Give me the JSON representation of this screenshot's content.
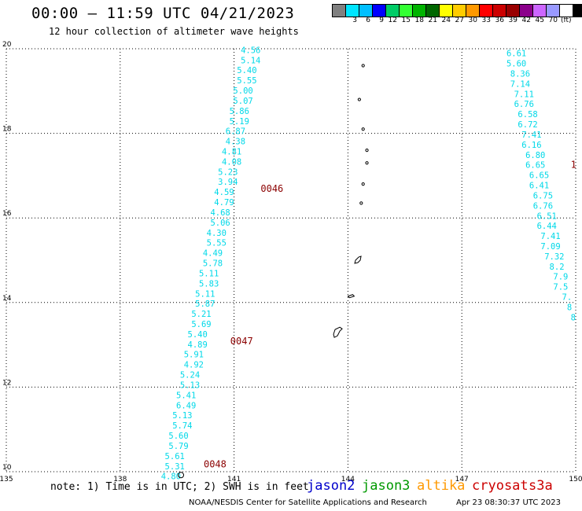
{
  "header": {
    "title": "00:00 – 11:59 UTC 04/21/2023",
    "subtitle": "12 hour collection of altimeter wave heights"
  },
  "legend": {
    "swatches": [
      "#808080",
      "#00e5ff",
      "#00bfff",
      "#0000ff",
      "#00cc66",
      "#33ff33",
      "#00b300",
      "#006600",
      "#ffff00",
      "#ffcc00",
      "#ff9900",
      "#ff0000",
      "#cc0000",
      "#990000",
      "#8b008b",
      "#cc66ff",
      "#9999ff",
      "#ffffff",
      "#000000"
    ],
    "labels": [
      "3",
      "6",
      "9",
      "12",
      "15",
      "18",
      "21",
      "24",
      "27",
      "30",
      "33",
      "36",
      "39",
      "42",
      "45",
      "70"
    ],
    "unit": "(ft)"
  },
  "footer": {
    "note": "note: 1) Time is in UTC; 2) SWH is in feet",
    "satellites": [
      {
        "name": "jason2",
        "color": "#0000cc"
      },
      {
        "name": "jason3",
        "color": "#009900"
      },
      {
        "name": "altika",
        "color": "#ff9900"
      },
      {
        "name": "cryosat",
        "color": "#cc0000"
      },
      {
        "name": "s3a",
        "color": "#cc0000"
      }
    ],
    "credit": "NOAA/NESDIS Center for Satellite Applications and Research",
    "timestamp": "Apr 23 08:30:37 UTC 2023"
  },
  "chart_data": {
    "type": "scatter",
    "xlim": [
      135,
      150
    ],
    "ylim": [
      10,
      20
    ],
    "xticks": [
      135,
      138,
      141,
      144,
      147,
      150
    ],
    "yticks": [
      10,
      12,
      14,
      16,
      18,
      20
    ],
    "grid": true,
    "value_color": "#00d8e8",
    "pass_label_color": "#8b0000",
    "passes": [
      {
        "label": "0046",
        "lon": 141.7,
        "lat": 16.62
      },
      {
        "label": "0047",
        "lon": 140.9,
        "lat": 13.01
      },
      {
        "label": "0048",
        "lon": 140.2,
        "lat": 10.1
      }
    ],
    "track_a": {
      "points": [
        {
          "lon": 141.7,
          "lat": 19.9,
          "v": "4.56"
        },
        {
          "lon": 141.7,
          "lat": 19.66,
          "v": "5.14"
        },
        {
          "lon": 141.6,
          "lat": 19.42,
          "v": "5.40"
        },
        {
          "lon": 141.6,
          "lat": 19.18,
          "v": "5.55"
        },
        {
          "lon": 141.5,
          "lat": 18.94,
          "v": "5.00"
        },
        {
          "lon": 141.5,
          "lat": 18.7,
          "v": "5.07"
        },
        {
          "lon": 141.4,
          "lat": 18.46,
          "v": "5.86"
        },
        {
          "lon": 141.4,
          "lat": 18.22,
          "v": "5.19"
        },
        {
          "lon": 141.3,
          "lat": 17.98,
          "v": "6.87"
        },
        {
          "lon": 141.3,
          "lat": 17.74,
          "v": "4.38"
        },
        {
          "lon": 141.2,
          "lat": 17.5,
          "v": "4.81"
        },
        {
          "lon": 141.2,
          "lat": 17.26,
          "v": "4.08"
        },
        {
          "lon": 141.1,
          "lat": 17.02,
          "v": "5.23"
        },
        {
          "lon": 141.1,
          "lat": 16.78,
          "v": "3.94"
        },
        {
          "lon": 141.0,
          "lat": 16.54,
          "v": "4.59"
        },
        {
          "lon": 141.0,
          "lat": 16.3,
          "v": "4.79"
        },
        {
          "lon": 140.9,
          "lat": 16.06,
          "v": "4.68"
        },
        {
          "lon": 140.9,
          "lat": 15.82,
          "v": "5.06"
        },
        {
          "lon": 140.8,
          "lat": 15.58,
          "v": "4.30"
        },
        {
          "lon": 140.8,
          "lat": 15.34,
          "v": "5.55"
        },
        {
          "lon": 140.7,
          "lat": 15.1,
          "v": "4.49"
        },
        {
          "lon": 140.7,
          "lat": 14.86,
          "v": "5.78"
        },
        {
          "lon": 140.6,
          "lat": 14.62,
          "v": "5.11"
        },
        {
          "lon": 140.6,
          "lat": 14.38,
          "v": "5.83"
        },
        {
          "lon": 140.5,
          "lat": 14.14,
          "v": "5.11"
        },
        {
          "lon": 140.5,
          "lat": 13.9,
          "v": "5.87"
        },
        {
          "lon": 140.4,
          "lat": 13.66,
          "v": "5.21"
        },
        {
          "lon": 140.4,
          "lat": 13.42,
          "v": "5.69"
        },
        {
          "lon": 140.3,
          "lat": 13.18,
          "v": "5.40"
        },
        {
          "lon": 140.3,
          "lat": 12.94,
          "v": "4.89"
        },
        {
          "lon": 140.2,
          "lat": 12.7,
          "v": "5.91"
        },
        {
          "lon": 140.2,
          "lat": 12.46,
          "v": "4.92"
        },
        {
          "lon": 140.1,
          "lat": 12.22,
          "v": "5.24"
        },
        {
          "lon": 140.1,
          "lat": 11.98,
          "v": "5.13"
        },
        {
          "lon": 140.0,
          "lat": 11.74,
          "v": "5.41"
        },
        {
          "lon": 140.0,
          "lat": 11.5,
          "v": "6.49"
        },
        {
          "lon": 139.9,
          "lat": 11.26,
          "v": "5.13"
        },
        {
          "lon": 139.9,
          "lat": 11.02,
          "v": "5.74"
        },
        {
          "lon": 139.8,
          "lat": 10.78,
          "v": "5.60"
        },
        {
          "lon": 139.8,
          "lat": 10.54,
          "v": "5.79"
        },
        {
          "lon": 139.7,
          "lat": 10.3,
          "v": "5.61"
        },
        {
          "lon": 139.7,
          "lat": 10.06,
          "v": "5.31"
        },
        {
          "lon": 139.6,
          "lat": 9.82,
          "v": "4.80"
        }
      ]
    },
    "track_b": {
      "points": [
        {
          "lon": 148.7,
          "lat": 19.82,
          "v": "6.61"
        },
        {
          "lon": 148.7,
          "lat": 19.58,
          "v": "5.60"
        },
        {
          "lon": 148.8,
          "lat": 19.34,
          "v": "8.36"
        },
        {
          "lon": 148.8,
          "lat": 19.1,
          "v": "7.14"
        },
        {
          "lon": 148.9,
          "lat": 18.86,
          "v": "7.11"
        },
        {
          "lon": 148.9,
          "lat": 18.62,
          "v": "6.76"
        },
        {
          "lon": 149.0,
          "lat": 18.38,
          "v": "6.58"
        },
        {
          "lon": 149.0,
          "lat": 18.14,
          "v": "6.72"
        },
        {
          "lon": 149.1,
          "lat": 17.9,
          "v": "7.41"
        },
        {
          "lon": 149.1,
          "lat": 17.66,
          "v": "6.16"
        },
        {
          "lon": 149.2,
          "lat": 17.42,
          "v": "6.80"
        },
        {
          "lon": 149.2,
          "lat": 17.18,
          "v": "6.65"
        },
        {
          "lon": 149.3,
          "lat": 16.94,
          "v": "6.65"
        },
        {
          "lon": 149.3,
          "lat": 16.7,
          "v": "6.41"
        },
        {
          "lon": 149.4,
          "lat": 16.46,
          "v": "6.75"
        },
        {
          "lon": 149.4,
          "lat": 16.22,
          "v": "6.76"
        },
        {
          "lon": 149.5,
          "lat": 15.98,
          "v": "6.51"
        },
        {
          "lon": 149.5,
          "lat": 15.74,
          "v": "6.44"
        },
        {
          "lon": 149.6,
          "lat": 15.5,
          "v": "7.41"
        },
        {
          "lon": 149.6,
          "lat": 15.26,
          "v": "7.09"
        },
        {
          "lon": 149.7,
          "lat": 15.02,
          "v": "7.32"
        },
        {
          "lon": 149.7,
          "lat": 14.78,
          "v": "8.2"
        },
        {
          "lon": 149.8,
          "lat": 14.54,
          "v": "7.9"
        },
        {
          "lon": 149.8,
          "lat": 14.3,
          "v": "7.5"
        },
        {
          "lon": 149.9,
          "lat": 14.06,
          "v": "7."
        },
        {
          "lon": 149.9,
          "lat": 13.82,
          "v": "8"
        },
        {
          "lon": 150.0,
          "lat": 13.58,
          "v": "8"
        }
      ]
    },
    "track_b_pass_label": {
      "label": "1",
      "lon": 149.95,
      "lat": 17.18
    }
  }
}
